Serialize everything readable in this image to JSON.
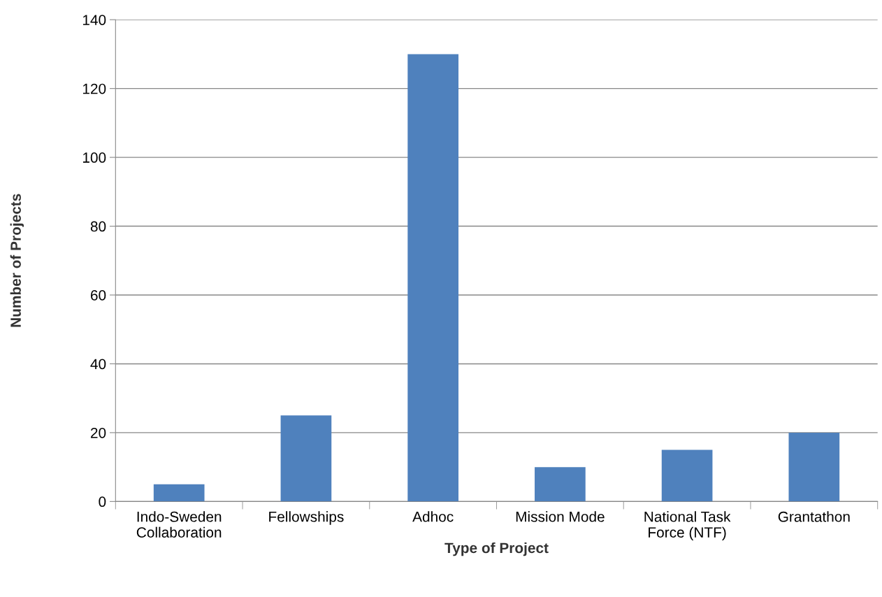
{
  "chart_data": {
    "type": "bar",
    "xlabel": "Type of Project",
    "ylabel": "Number of Projects",
    "categories": [
      "Indo-Sweden\nCollaboration",
      "Fellowships",
      "Adhoc",
      "Mission Mode",
      "National Task\nForce (NTF)",
      "Grantathon"
    ],
    "values": [
      5,
      25,
      130,
      10,
      15,
      20
    ],
    "color": "#4f81bd",
    "ylim": [
      0,
      140
    ],
    "yticks": [
      0,
      20,
      40,
      60,
      80,
      100,
      120,
      140
    ],
    "grid": "y"
  }
}
